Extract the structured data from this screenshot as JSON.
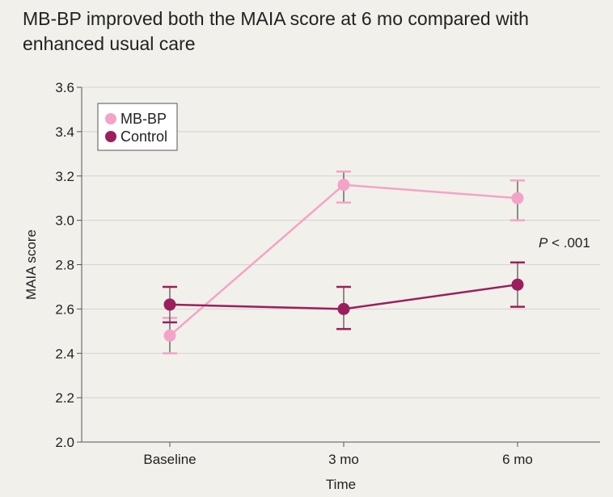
{
  "chart_data": {
    "type": "line",
    "title": "MB-BP improved both the MAIA score at 6 mo compared with enhanced usual care",
    "xlabel": "Time",
    "ylabel": "MAIA score",
    "categories": [
      "Baseline",
      "3 mo",
      "6 mo"
    ],
    "ylim": [
      2.0,
      3.6
    ],
    "yticks": [
      "2.0",
      "2.2",
      "2.4",
      "2.6",
      "2.8",
      "3.0",
      "3.2",
      "3.4",
      "3.6"
    ],
    "grid": "horizontal",
    "legend_position": "top-left",
    "annotation": {
      "italic": "P",
      "text": " < .001"
    },
    "series": [
      {
        "name": "MB-BP",
        "color": "#f4a3c8",
        "values": [
          2.48,
          3.16,
          3.1
        ],
        "lower": [
          2.4,
          3.08,
          3.0
        ],
        "upper": [
          2.56,
          3.22,
          3.18
        ]
      },
      {
        "name": "Control",
        "color": "#9c1e5c",
        "values": [
          2.62,
          2.6,
          2.71
        ],
        "lower": [
          2.54,
          2.51,
          2.61
        ],
        "upper": [
          2.7,
          2.7,
          2.81
        ]
      }
    ]
  }
}
